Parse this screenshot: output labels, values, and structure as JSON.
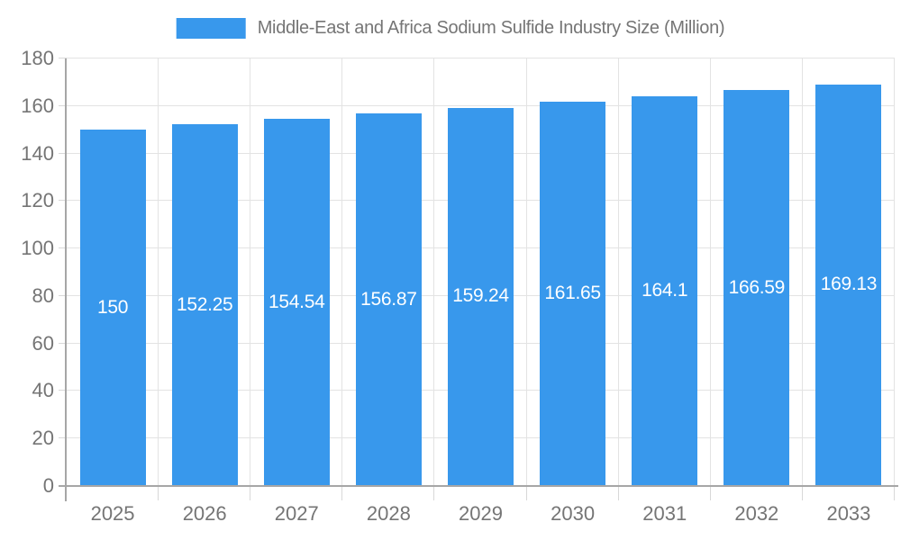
{
  "legend": {
    "series_label": "Middle-East and Africa Sodium Sulfide Industry Size (Million)"
  },
  "colors": {
    "bar": "#3898EC",
    "axis_text": "#757575",
    "grid": "#E3E3E3",
    "tick": "#D8D8D8",
    "axis_line": "#A6A6A6",
    "value_label": "#FFFFFF",
    "background": "#FFFFFF"
  },
  "chart_data": {
    "type": "bar",
    "title": "Middle-East and Africa Sodium Sulfide Industry Size (Million)",
    "categories": [
      "2025",
      "2026",
      "2027",
      "2028",
      "2029",
      "2030",
      "2031",
      "2032",
      "2033"
    ],
    "values": [
      150,
      152.25,
      154.54,
      156.87,
      159.24,
      161.65,
      164.1,
      166.59,
      169.13
    ],
    "value_labels": [
      "150",
      "152.25",
      "154.54",
      "156.87",
      "159.24",
      "161.65",
      "164.1",
      "166.59",
      "169.13"
    ],
    "xlabel": "",
    "ylabel": "",
    "ylim": [
      0,
      180
    ],
    "ytick_step": 20,
    "ytick_labels": [
      "0",
      "20",
      "40",
      "60",
      "80",
      "100",
      "120",
      "140",
      "160",
      "180"
    ],
    "grid": true,
    "legend_position": "top-center",
    "value_label_position": "inside-center"
  }
}
